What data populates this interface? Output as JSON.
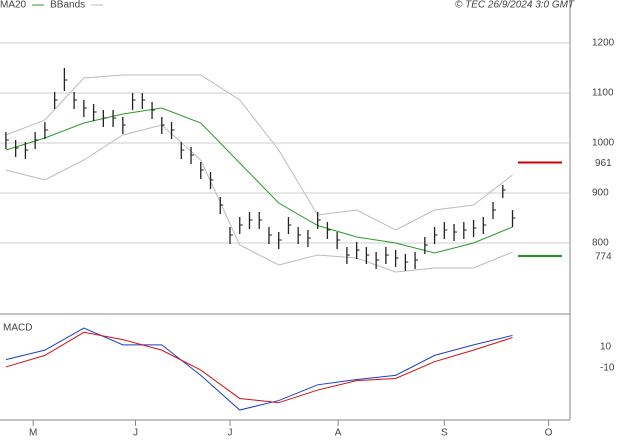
{
  "chart_data": [
    {
      "type": "ohlc",
      "copyright": "© TEC 26/9/2024 3:0 GMT",
      "x": [
        0,
        1,
        2,
        3,
        4,
        5,
        6,
        7,
        8,
        9,
        10,
        11,
        12,
        13,
        14,
        15,
        16,
        17,
        18,
        19,
        20,
        21,
        22,
        23,
        24,
        25,
        26,
        27,
        28,
        29,
        30,
        31,
        32,
        33,
        34,
        35,
        36,
        37,
        38,
        39,
        40,
        41,
        42,
        43,
        44,
        45,
        46,
        47,
        48,
        49,
        50,
        51,
        52
      ],
      "high": [
        1022,
        1006,
        1002,
        1022,
        1042,
        1102,
        1150,
        1102,
        1086,
        1078,
        1066,
        1066,
        1052,
        1100,
        1100,
        1082,
        1052,
        1042,
        1002,
        992,
        962,
        942,
        892,
        832,
        852,
        862,
        862,
        832,
        822,
        852,
        832,
        826,
        862,
        842,
        822,
        792,
        802,
        792,
        782,
        792,
        786,
        778,
        782,
        812,
        832,
        842,
        838,
        842,
        846,
        852,
        882,
        916,
        866
      ],
      "low": [
        988,
        972,
        968,
        988,
        1008,
        1068,
        1104,
        1068,
        1052,
        1044,
        1032,
        1032,
        1018,
        1066,
        1068,
        1048,
        1018,
        1008,
        968,
        958,
        928,
        908,
        858,
        798,
        818,
        828,
        828,
        798,
        788,
        818,
        798,
        792,
        828,
        808,
        788,
        758,
        768,
        758,
        748,
        758,
        752,
        744,
        748,
        778,
        798,
        808,
        804,
        808,
        812,
        818,
        848,
        890,
        832
      ],
      "close": [
        1006,
        990,
        986,
        1006,
        1026,
        1086,
        1126,
        1086,
        1070,
        1062,
        1050,
        1050,
        1036,
        1086,
        1086,
        1066,
        1036,
        1026,
        986,
        976,
        946,
        926,
        876,
        816,
        836,
        846,
        846,
        816,
        806,
        836,
        816,
        810,
        846,
        826,
        806,
        776,
        786,
        776,
        766,
        776,
        770,
        762,
        766,
        796,
        816,
        826,
        822,
        826,
        830,
        836,
        866,
        906,
        850
      ],
      "color": "#222222",
      "series": [
        {
          "name": "MA20",
          "color": "#2a9a2a",
          "x": [
            0,
            4,
            8,
            12,
            16,
            20,
            24,
            28,
            32,
            36,
            40,
            44,
            48,
            52
          ],
          "values": [
            986,
            1010,
            1040,
            1058,
            1070,
            1040,
            960,
            880,
            835,
            812,
            800,
            780,
            800,
            832
          ]
        },
        {
          "name": "BBands",
          "color": "#bbbbbb",
          "x": [
            0,
            4,
            8,
            12,
            16,
            20,
            24,
            28,
            32,
            36,
            40,
            44,
            48,
            52
          ],
          "upper": [
            1016,
            1046,
            1130,
            1136,
            1136,
            1136,
            1086,
            986,
            856,
            866,
            826,
            866,
            876,
            936
          ],
          "lower": [
            946,
            926,
            966,
            1016,
            1036,
            966,
            796,
            756,
            776,
            770,
            742,
            750,
            750,
            782
          ]
        }
      ],
      "levels": [
        {
          "value": 961,
          "color": "#cc0000"
        },
        {
          "value": 774,
          "color": "#1a9a1a"
        }
      ],
      "xlim": [
        -0.3,
        57.9
      ],
      "xticks": [
        {
          "value": 2.8,
          "label": "M"
        },
        {
          "value": 13.3,
          "label": "J"
        },
        {
          "value": 23,
          "label": "J"
        },
        {
          "value": 34.1,
          "label": "A"
        },
        {
          "value": 45,
          "label": "S"
        },
        {
          "value": 55.7,
          "label": "O"
        }
      ],
      "ylim": [
        662,
        1286
      ],
      "yticks": [
        800,
        900,
        1000,
        1100,
        1200
      ],
      "grid": true
    },
    {
      "type": "macd",
      "title": "MACD",
      "xlim": [
        -0.3,
        57.9
      ],
      "ylim": [
        -57.6,
        39.5
      ],
      "yticks": [
        10,
        -10
      ],
      "series": [
        {
          "color": "#1a3fd0",
          "x": [
            0,
            4,
            8,
            12,
            16,
            20,
            24,
            28,
            32,
            36,
            40,
            44,
            48,
            52
          ],
          "values": [
            -2,
            7,
            28,
            12,
            12,
            -17,
            -50,
            -41,
            -26,
            -21,
            -17,
            2,
            12,
            21
          ]
        },
        {
          "color": "#d01010",
          "x": [
            0,
            4,
            8,
            12,
            16,
            20,
            24,
            28,
            32,
            36,
            40,
            44,
            48,
            52
          ],
          "values": [
            -9,
            2,
            24,
            17,
            7,
            -12,
            -39,
            -43,
            -31,
            -22,
            -20,
            -4,
            7,
            19
          ]
        }
      ]
    }
  ]
}
